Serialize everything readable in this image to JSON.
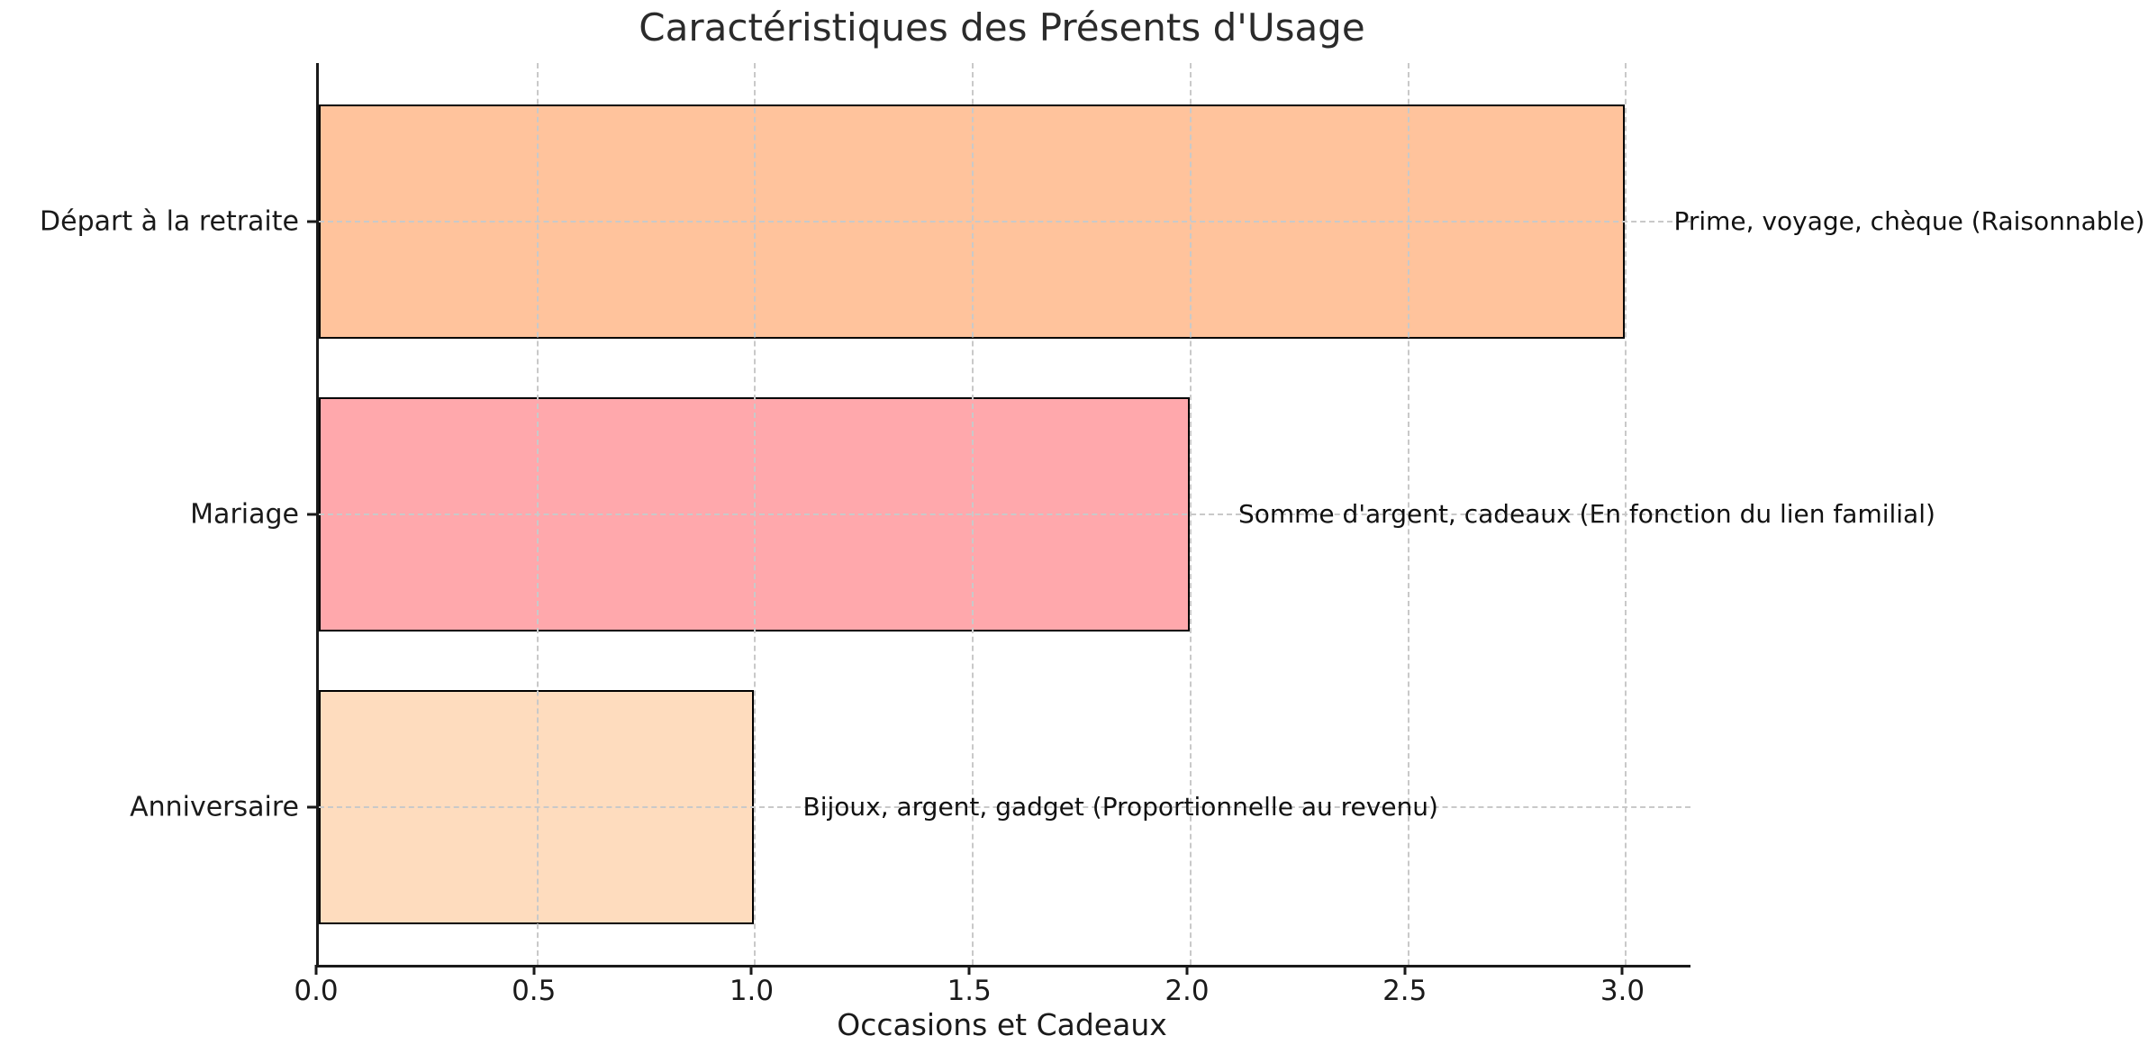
{
  "chart_data": {
    "type": "bar",
    "orientation": "horizontal",
    "title": "Caractéristiques des Présents d'Usage",
    "xlabel": "Occasions et Cadeaux",
    "ylabel": "",
    "categories": [
      "Départ à la retraite",
      "Mariage",
      "Anniversaire"
    ],
    "values": [
      3,
      2,
      1
    ],
    "annotations": [
      "Prime, voyage, chèque (Raisonnable)",
      "Somme d'argent, cadeaux (En fonction du lien familial)",
      "Bijoux, argent, gadget (Proportionnelle au revenu)"
    ],
    "bar_colors": [
      "#FFC39C",
      "#FFA8AC",
      "#FEDCBE"
    ],
    "bar_edge_color": "#000000",
    "grid": true,
    "grid_color": "#C9C9C9",
    "legend": "none",
    "xlim": [
      0,
      3.15
    ],
    "ylim": [
      -0.54,
      2.54
    ],
    "bar_height": 0.8,
    "x_ticks": [
      0.0,
      0.5,
      1.0,
      1.5,
      2.0,
      2.5,
      3.0
    ],
    "x_tick_labels": [
      "0.0",
      "0.5",
      "1.0",
      "1.5",
      "2.0",
      "2.5",
      "3.0"
    ]
  }
}
